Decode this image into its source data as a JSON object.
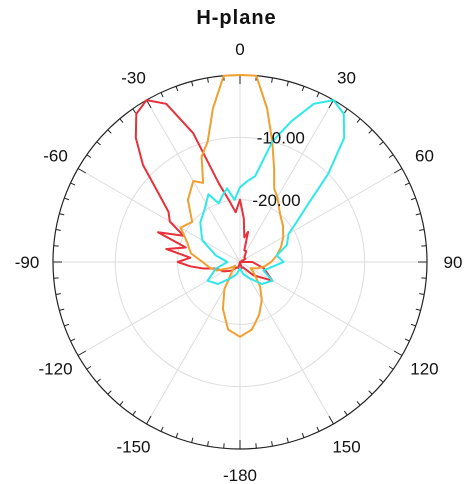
{
  "chart_data": {
    "type": "polar-line",
    "title": "H-plane",
    "angle_ticks": [
      0,
      30,
      60,
      90,
      120,
      150,
      -180,
      -150,
      -120,
      -90,
      -60,
      -30
    ],
    "angle_labels": [
      "0",
      "30",
      "60",
      "90",
      "120",
      "150",
      "-180",
      "-150",
      "-120",
      "-90",
      "-60",
      "-30"
    ],
    "radial_ticks": [
      -10,
      -20
    ],
    "radial_labels": [
      "-10.00",
      "-20.00"
    ],
    "rlim": [
      -30,
      0
    ],
    "grid": true,
    "series": [
      {
        "color": "#e8303a",
        "points": [
          [
            -180,
            -30
          ],
          [
            -165,
            -29
          ],
          [
            -150,
            -29
          ],
          [
            -135,
            -28
          ],
          [
            -120,
            -27
          ],
          [
            -105,
            -26
          ],
          [
            -100,
            -24
          ],
          [
            -95,
            -22
          ],
          [
            -90,
            -20
          ],
          [
            -85,
            -22
          ],
          [
            -80,
            -18
          ],
          [
            -75,
            -21
          ],
          [
            -70,
            -16
          ],
          [
            -65,
            -20
          ],
          [
            -60,
            -17
          ],
          [
            -55,
            -16
          ],
          [
            -50,
            -13
          ],
          [
            -45,
            -8
          ],
          [
            -40,
            -4
          ],
          [
            -35,
            -1
          ],
          [
            -30,
            0
          ],
          [
            -25,
            -2
          ],
          [
            -20,
            -8
          ],
          [
            -15,
            -17
          ],
          [
            -10,
            -20
          ],
          [
            -5,
            -22
          ],
          [
            0,
            -20
          ],
          [
            5,
            -23
          ],
          [
            10,
            -26
          ],
          [
            15,
            -25
          ],
          [
            20,
            -28
          ],
          [
            30,
            -28
          ],
          [
            45,
            -29
          ],
          [
            60,
            -29
          ],
          [
            75,
            -30
          ],
          [
            90,
            -28
          ],
          [
            105,
            -26
          ],
          [
            120,
            -24
          ],
          [
            135,
            -27
          ],
          [
            150,
            -29
          ],
          [
            165,
            -29
          ],
          [
            180,
            -30
          ]
        ]
      },
      {
        "color": "#f0a030",
        "points": [
          [
            -180,
            -18
          ],
          [
            -170,
            -19
          ],
          [
            -160,
            -22
          ],
          [
            -150,
            -25
          ],
          [
            -140,
            -28
          ],
          [
            -130,
            -29
          ],
          [
            -120,
            -28
          ],
          [
            -110,
            -26
          ],
          [
            -100,
            -25
          ],
          [
            -90,
            -24
          ],
          [
            -80,
            -22
          ],
          [
            -70,
            -21
          ],
          [
            -60,
            -19
          ],
          [
            -50,
            -20
          ],
          [
            -40,
            -17
          ],
          [
            -30,
            -15
          ],
          [
            -25,
            -16
          ],
          [
            -20,
            -12
          ],
          [
            -15,
            -10
          ],
          [
            -10,
            -5
          ],
          [
            -5,
            0
          ],
          [
            0,
            0
          ],
          [
            5,
            0
          ],
          [
            10,
            -5
          ],
          [
            15,
            -10
          ],
          [
            20,
            -14
          ],
          [
            25,
            -17
          ],
          [
            30,
            -18
          ],
          [
            40,
            -20
          ],
          [
            50,
            -21
          ],
          [
            60,
            -22
          ],
          [
            70,
            -23
          ],
          [
            80,
            -24
          ],
          [
            90,
            -25
          ],
          [
            100,
            -26
          ],
          [
            110,
            -27
          ],
          [
            120,
            -28
          ],
          [
            130,
            -27
          ],
          [
            140,
            -25
          ],
          [
            150,
            -23
          ],
          [
            160,
            -21
          ],
          [
            170,
            -19
          ],
          [
            180,
            -18
          ]
        ]
      },
      {
        "color": "#30e8e8",
        "points": [
          [
            -180,
            -29
          ],
          [
            -165,
            -28
          ],
          [
            -150,
            -27
          ],
          [
            -135,
            -25
          ],
          [
            -120,
            -24
          ],
          [
            -105,
            -26
          ],
          [
            -90,
            -28
          ],
          [
            -75,
            -26
          ],
          [
            -60,
            -23
          ],
          [
            -45,
            -21
          ],
          [
            -35,
            -20
          ],
          [
            -25,
            -18
          ],
          [
            -20,
            -20
          ],
          [
            -15,
            -19
          ],
          [
            -10,
            -18
          ],
          [
            -5,
            -20
          ],
          [
            0,
            -18
          ],
          [
            5,
            -17
          ],
          [
            10,
            -16
          ],
          [
            15,
            -10
          ],
          [
            20,
            -6
          ],
          [
            25,
            -2
          ],
          [
            30,
            0
          ],
          [
            35,
            -1
          ],
          [
            40,
            -4
          ],
          [
            45,
            -10
          ],
          [
            50,
            -16
          ],
          [
            55,
            -19
          ],
          [
            60,
            -21
          ],
          [
            70,
            -22
          ],
          [
            80,
            -24
          ],
          [
            90,
            -23
          ],
          [
            100,
            -25
          ],
          [
            110,
            -26
          ],
          [
            120,
            -24
          ],
          [
            135,
            -25
          ],
          [
            150,
            -27
          ],
          [
            165,
            -28
          ],
          [
            180,
            -29
          ]
        ]
      }
    ]
  }
}
